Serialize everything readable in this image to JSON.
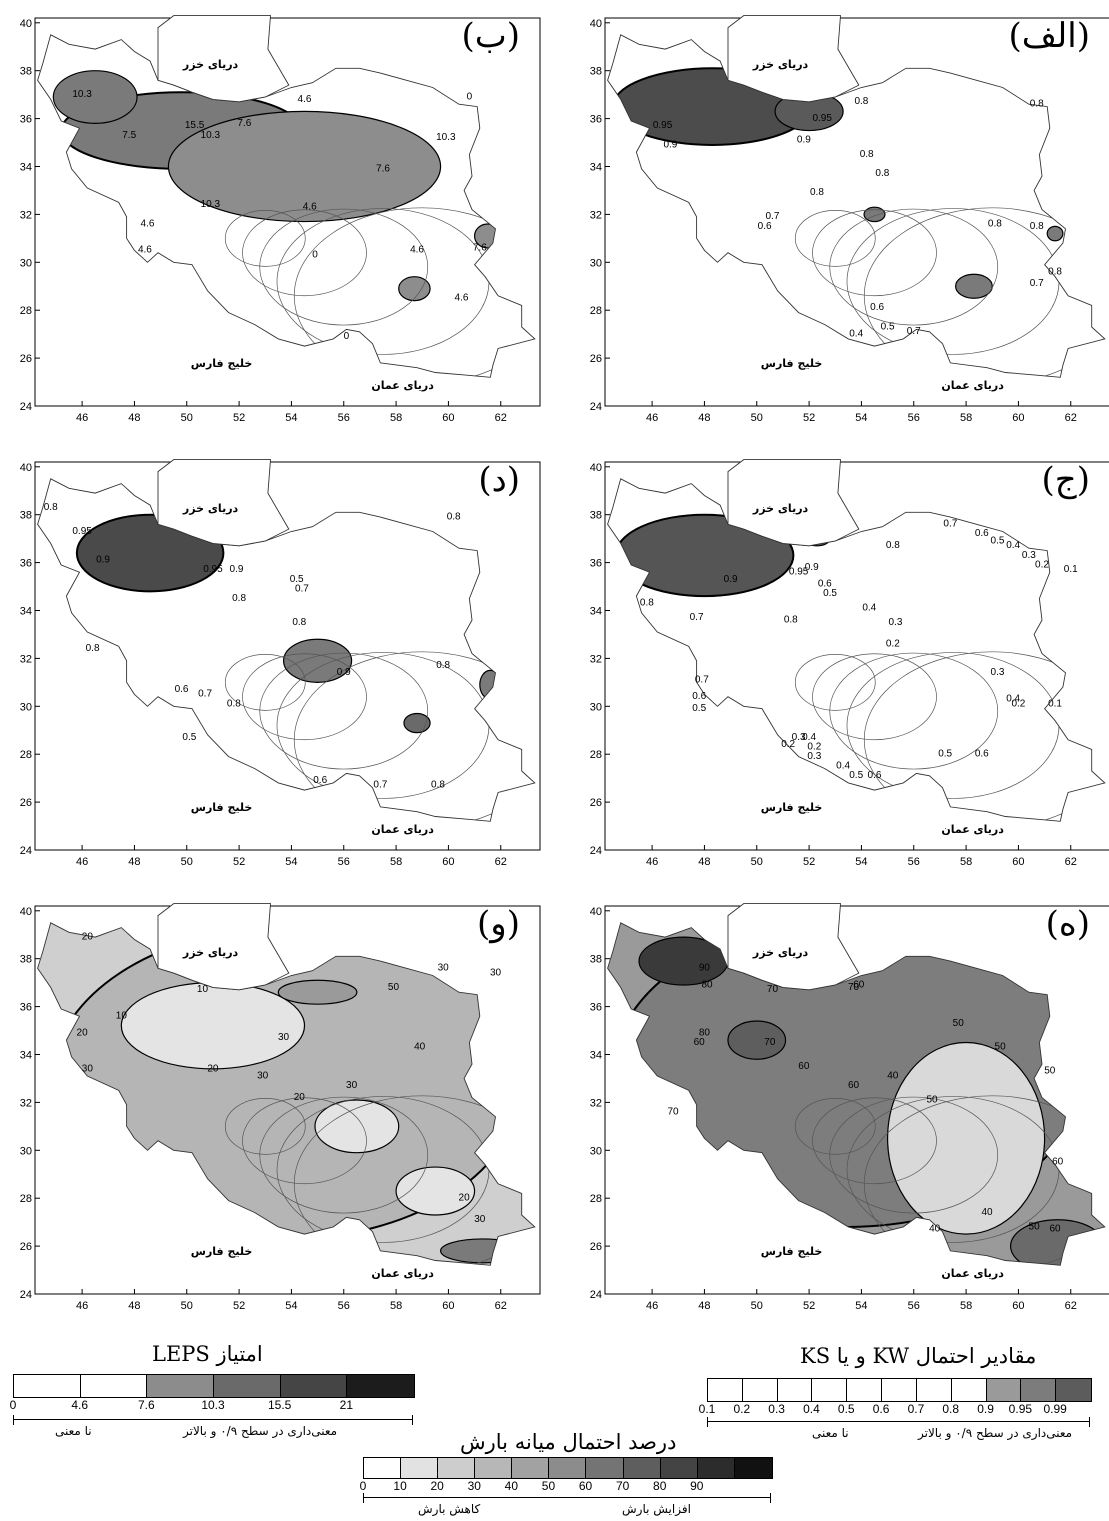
{
  "panels": [
    {
      "id": "b",
      "title": "(ب)",
      "labels": [
        "10.3",
        "15.5",
        "10.3",
        "7.6",
        "4.6",
        "10.3",
        "7.6",
        "7.5",
        "4.6",
        "4.6",
        "4.6",
        "0",
        "7.6",
        "4.6",
        "4.6",
        "0",
        "0",
        "10.3"
      ]
    },
    {
      "id": "alef",
      "title": "(الف)",
      "labels": [
        "0.95",
        "0.9",
        "0.95",
        "0.9",
        "0.8",
        "0.8",
        "0.8",
        "0.8",
        "0.7",
        "0.6",
        "0.8",
        "0.8",
        "0.8",
        "0.7",
        "0.6",
        "0.5",
        "0.7",
        "0.4",
        "0.8"
      ]
    },
    {
      "id": "dal",
      "title": "(د)",
      "labels": [
        "0.8",
        "0.95",
        "0.9",
        "0.95",
        "0.9",
        "0.8",
        "0.5",
        "0.7",
        "0.8",
        "0.8",
        "0.9",
        "0.8",
        "0.6",
        "0.7",
        "0.8",
        "0.5",
        "0.6",
        "0.7",
        "0.8",
        "0.8"
      ]
    },
    {
      "id": "jim",
      "title": "(ج)",
      "labels": [
        "0.9",
        "0.95",
        "0.9",
        "0.8",
        "0.7",
        "0.8",
        "0.6",
        "0.5",
        "0.4",
        "0.3",
        "0.2",
        "0.7",
        "0.6",
        "0.5",
        "0.3",
        "0.2",
        "0.4",
        "0.2",
        "0.3",
        "0.4",
        "0.5",
        "0.6",
        "0.5",
        "0.6",
        "0.8",
        "0.7",
        "0.6",
        "0.5",
        "0.4",
        "0.3",
        "0.2",
        "0.1",
        "0.3",
        "0.4",
        "0.2",
        "0.1"
      ]
    },
    {
      "id": "vav",
      "title": "(و)",
      "labels": [
        "20",
        "10",
        "10",
        "20",
        "30",
        "20",
        "30",
        "20",
        "30",
        "30",
        "40",
        "30",
        "50",
        "30",
        "20",
        "30"
      ]
    },
    {
      "id": "he",
      "title": "(ه)",
      "labels": [
        "90",
        "80",
        "70",
        "70",
        "60",
        "50",
        "60",
        "70",
        "80",
        "60",
        "60",
        "50",
        "50",
        "40",
        "50",
        "60",
        "40",
        "40",
        "50",
        "60",
        "70"
      ]
    }
  ],
  "seas": {
    "caspian": "دریای خزر",
    "gulf": "خلیج فارس",
    "oman": "دریای عمان"
  },
  "axes": {
    "x": [
      "46",
      "48",
      "50",
      "52",
      "54",
      "56",
      "58",
      "60",
      "62"
    ],
    "y": [
      "40",
      "38",
      "36",
      "34",
      "32",
      "30",
      "28",
      "26",
      "24"
    ]
  },
  "legends": {
    "leps": {
      "title": "امتیاز LEPS",
      "ticks": [
        "0",
        "4.6",
        "7.6",
        "10.3",
        "15.5",
        "21"
      ],
      "left_caption": "نا معنی",
      "right_caption": "معنی‌داری در سطح ۰/۹ و بالاتر",
      "colors": [
        "#ffffff",
        "#ffffff",
        "#8c8c8c",
        "#6a6a6a",
        "#454545",
        "#1c1c1c"
      ]
    },
    "ks": {
      "title": "مقادیر احتمال KW و یا KS",
      "ticks": [
        "0.1",
        "0.2",
        "0.3",
        "0.4",
        "0.5",
        "0.6",
        "0.7",
        "0.8",
        "0.9",
        "0.95",
        "0.99"
      ],
      "left_caption": "نا معنی",
      "right_caption": "معنی‌داری در سطح ۰/۹ و بالاتر",
      "colors": [
        "#ffffff",
        "#ffffff",
        "#ffffff",
        "#ffffff",
        "#ffffff",
        "#ffffff",
        "#ffffff",
        "#ffffff",
        "#9a9a9a",
        "#7c7c7c",
        "#5c5c5c"
      ]
    },
    "pct": {
      "title": "درصد احتمال میانه بارش",
      "ticks": [
        "0",
        "10",
        "20",
        "30",
        "40",
        "50",
        "60",
        "70",
        "80",
        "90"
      ],
      "left_caption": "کاهش بارش",
      "right_caption": "افزایش بارش",
      "colors": [
        "#ffffff",
        "#e2e2e2",
        "#cdcdcd",
        "#b7b7b7",
        "#a2a2a2",
        "#8c8c8c",
        "#747474",
        "#5e5e5e",
        "#444444",
        "#2c2c2c",
        "#111111"
      ]
    }
  }
}
